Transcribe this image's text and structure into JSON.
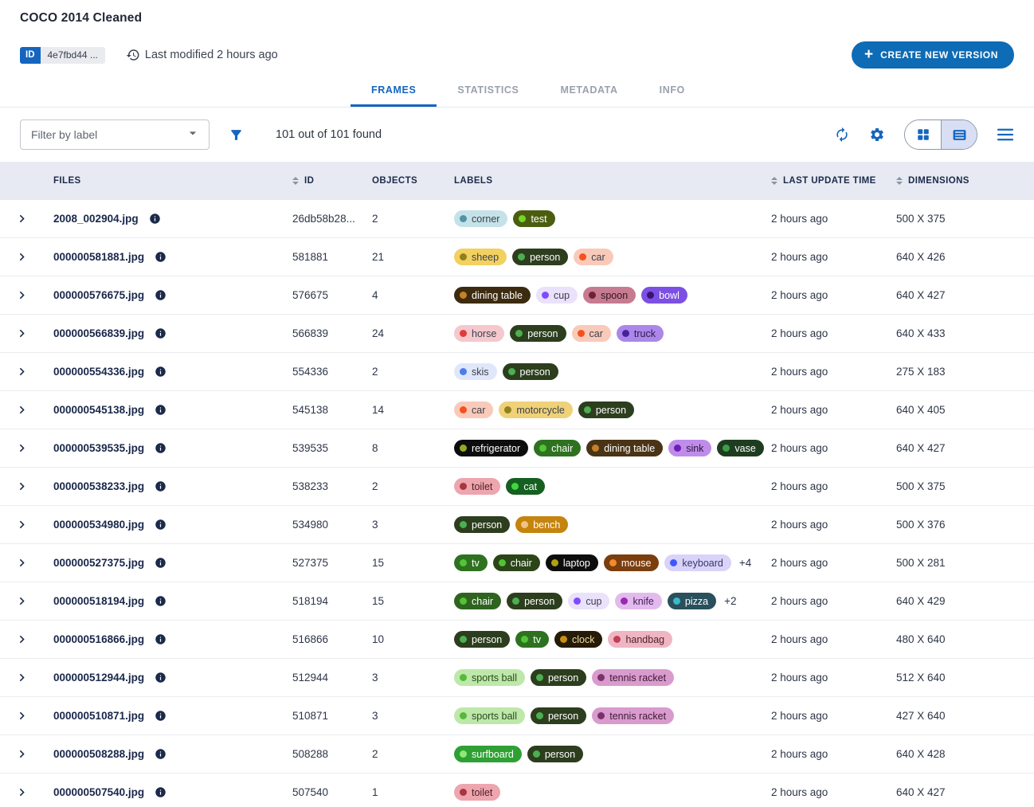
{
  "header": {
    "title": "COCO 2014 Cleaned",
    "id_badge": {
      "label": "ID",
      "value": "4e7fbd44 ..."
    },
    "last_modified": "Last modified 2 hours ago",
    "create_button": "CREATE NEW VERSION"
  },
  "tabs": [
    {
      "label": "FRAMES",
      "active": true
    },
    {
      "label": "STATISTICS",
      "active": false
    },
    {
      "label": "METADATA",
      "active": false
    },
    {
      "label": "INFO",
      "active": false
    }
  ],
  "toolbar": {
    "filter": {
      "placeholder": "Filter by label"
    },
    "results": "101 out of 101 found",
    "icons": [
      "filter-funnel",
      "refresh",
      "settings",
      "grid-view",
      "list-view",
      "menu"
    ],
    "view_toggle_selected": "list"
  },
  "colors": {
    "primary_blue": "#1565c0",
    "button_blue": "#0e6bb5",
    "header_row_bg": "#e7eaf3",
    "toggle_selected_bg": "#d8def3"
  },
  "table": {
    "columns": [
      {
        "key": "files",
        "label": "FILES",
        "sortable": false
      },
      {
        "key": "id",
        "label": "ID",
        "sortable": true
      },
      {
        "key": "objects",
        "label": "OBJECTS",
        "sortable": false
      },
      {
        "key": "labels",
        "label": "LABELS",
        "sortable": false
      },
      {
        "key": "time",
        "label": "LAST UPDATE TIME",
        "sortable": true
      },
      {
        "key": "dims",
        "label": "DIMENSIONS",
        "sortable": true
      }
    ],
    "rows": [
      {
        "file": "2008_002904.jpg",
        "id": "26db58b28...",
        "objects": "2",
        "labels": [
          {
            "t": "corner",
            "bg": "#c5e2e9",
            "dot": "#4f93a8",
            "fg": "#3a414e"
          },
          {
            "t": "test",
            "bg": "#4b5e10",
            "dot": "#73d824",
            "fg": "#ffffff"
          }
        ],
        "extra": "",
        "time": "2 hours ago",
        "dims": "500 X 375"
      },
      {
        "file": "000000581881.jpg",
        "id": "581881",
        "objects": "21",
        "labels": [
          {
            "t": "sheep",
            "bg": "#f2d160",
            "dot": "#92801e",
            "fg": "#3a414e"
          },
          {
            "t": "person",
            "bg": "#2c3e1d",
            "dot": "#4caf50",
            "fg": "#ffffff"
          },
          {
            "t": "car",
            "bg": "#f9cab9",
            "dot": "#f4511e",
            "fg": "#3a414e"
          }
        ],
        "extra": "",
        "time": "2 hours ago",
        "dims": "640 X 426"
      },
      {
        "file": "000000576675.jpg",
        "id": "576675",
        "objects": "4",
        "labels": [
          {
            "t": "dining table",
            "bg": "#3c2b10",
            "dot": "#c58125",
            "fg": "#ffffff"
          },
          {
            "t": "cup",
            "bg": "#eae2fb",
            "dot": "#7c4dff",
            "fg": "#3a414e"
          },
          {
            "t": "spoon",
            "bg": "#c77b90",
            "dot": "#6e2236",
            "fg": "#2e1822"
          },
          {
            "t": "bowl",
            "bg": "#7c50e2",
            "dot": "#381572",
            "fg": "#ffffff"
          }
        ],
        "extra": "",
        "time": "2 hours ago",
        "dims": "640 X 427"
      },
      {
        "file": "000000566839.jpg",
        "id": "566839",
        "objects": "24",
        "labels": [
          {
            "t": "horse",
            "bg": "#f5c8cd",
            "dot": "#e23b3b",
            "fg": "#3a414e"
          },
          {
            "t": "person",
            "bg": "#2c3e1d",
            "dot": "#4caf50",
            "fg": "#ffffff"
          },
          {
            "t": "car",
            "bg": "#f9cab9",
            "dot": "#f4511e",
            "fg": "#3a414e"
          },
          {
            "t": "truck",
            "bg": "#ab87e9",
            "dot": "#46219a",
            "fg": "#2c1a4e"
          }
        ],
        "extra": "",
        "time": "2 hours ago",
        "dims": "640 X 433"
      },
      {
        "file": "000000554336.jpg",
        "id": "554336",
        "objects": "2",
        "labels": [
          {
            "t": "skis",
            "bg": "#dfe7fa",
            "dot": "#4c7cf0",
            "fg": "#3a414e"
          },
          {
            "t": "person",
            "bg": "#2c3e1d",
            "dot": "#4caf50",
            "fg": "#ffffff"
          }
        ],
        "extra": "",
        "time": "2 hours ago",
        "dims": "275 X 183"
      },
      {
        "file": "000000545138.jpg",
        "id": "545138",
        "objects": "14",
        "labels": [
          {
            "t": "car",
            "bg": "#f9cab9",
            "dot": "#f4511e",
            "fg": "#3a414e"
          },
          {
            "t": "motorcycle",
            "bg": "#efd178",
            "dot": "#92801e",
            "fg": "#3a414e"
          },
          {
            "t": "person",
            "bg": "#2c3e1d",
            "dot": "#4caf50",
            "fg": "#ffffff"
          }
        ],
        "extra": "",
        "time": "2 hours ago",
        "dims": "640 X 405"
      },
      {
        "file": "000000539535.jpg",
        "id": "539535",
        "objects": "8",
        "labels": [
          {
            "t": "refrigerator",
            "bg": "#0d0d0d",
            "dot": "#8fae1f",
            "fg": "#ffffff"
          },
          {
            "t": "chair",
            "bg": "#2e7220",
            "dot": "#54c437",
            "fg": "#ffffff"
          },
          {
            "t": "dining table",
            "bg": "#4a3415",
            "dot": "#c58125",
            "fg": "#ffffff"
          },
          {
            "t": "sink",
            "bg": "#bf8de9",
            "dot": "#6a1fb8",
            "fg": "#2c1440"
          },
          {
            "t": "vase",
            "bg": "#1e3d20",
            "dot": "#3e9e48",
            "fg": "#ffffff"
          }
        ],
        "extra": "",
        "time": "2 hours ago",
        "dims": "640 X 427"
      },
      {
        "file": "000000538233.jpg",
        "id": "538233",
        "objects": "2",
        "labels": [
          {
            "t": "toilet",
            "bg": "#eda5ae",
            "dot": "#a8353f",
            "fg": "#4e1e24"
          },
          {
            "t": "cat",
            "bg": "#156020",
            "dot": "#3ed83e",
            "fg": "#ffffff"
          }
        ],
        "extra": "",
        "time": "2 hours ago",
        "dims": "500 X 375"
      },
      {
        "file": "000000534980.jpg",
        "id": "534980",
        "objects": "3",
        "labels": [
          {
            "t": "person",
            "bg": "#2c3e1d",
            "dot": "#4caf50",
            "fg": "#ffffff"
          },
          {
            "t": "bench",
            "bg": "#c5840e",
            "dot": "#f2c285",
            "fg": "#ffffff"
          }
        ],
        "extra": "",
        "time": "2 hours ago",
        "dims": "500 X 376"
      },
      {
        "file": "000000527375.jpg",
        "id": "527375",
        "objects": "15",
        "labels": [
          {
            "t": "tv",
            "bg": "#2e7220",
            "dot": "#54c437",
            "fg": "#ffffff"
          },
          {
            "t": "chair",
            "bg": "#2b4518",
            "dot": "#52c234",
            "fg": "#ffffff"
          },
          {
            "t": "laptop",
            "bg": "#0d0d0d",
            "dot": "#b0a014",
            "fg": "#ffffff"
          },
          {
            "t": "mouse",
            "bg": "#7b3e0f",
            "dot": "#f28a2a",
            "fg": "#ffffff"
          },
          {
            "t": "keyboard",
            "bg": "#d9d3f9",
            "dot": "#3d5afe",
            "fg": "#32396b"
          }
        ],
        "extra": "+4",
        "time": "2 hours ago",
        "dims": "500 X 281"
      },
      {
        "file": "000000518194.jpg",
        "id": "518194",
        "objects": "15",
        "labels": [
          {
            "t": "chair",
            "bg": "#2f6420",
            "dot": "#52c234",
            "fg": "#ffffff"
          },
          {
            "t": "person",
            "bg": "#2c3e1d",
            "dot": "#4caf50",
            "fg": "#ffffff"
          },
          {
            "t": "cup",
            "bg": "#eae2fb",
            "dot": "#7c4dff",
            "fg": "#3a414e"
          },
          {
            "t": "knife",
            "bg": "#e3baee",
            "dot": "#9c27b0",
            "fg": "#43205a"
          },
          {
            "t": "pizza",
            "bg": "#29505c",
            "dot": "#38bac8",
            "fg": "#ffffff"
          }
        ],
        "extra": "+2",
        "time": "2 hours ago",
        "dims": "640 X 429"
      },
      {
        "file": "000000516866.jpg",
        "id": "516866",
        "objects": "10",
        "labels": [
          {
            "t": "person",
            "bg": "#2c3e1d",
            "dot": "#4caf50",
            "fg": "#ffffff"
          },
          {
            "t": "tv",
            "bg": "#2e7220",
            "dot": "#54c437",
            "fg": "#ffffff"
          },
          {
            "t": "clock",
            "bg": "#251b06",
            "dot": "#c89010",
            "fg": "#ebdfac"
          },
          {
            "t": "handbag",
            "bg": "#f0b5c3",
            "dot": "#c04058",
            "fg": "#50222c"
          }
        ],
        "extra": "",
        "time": "2 hours ago",
        "dims": "480 X 640"
      },
      {
        "file": "000000512944.jpg",
        "id": "512944",
        "objects": "3",
        "labels": [
          {
            "t": "sports ball",
            "bg": "#bde8a9",
            "dot": "#56b93b",
            "fg": "#2c481f"
          },
          {
            "t": "person",
            "bg": "#2c3e1d",
            "dot": "#4caf50",
            "fg": "#ffffff"
          },
          {
            "t": "tennis racket",
            "bg": "#d99bce",
            "dot": "#7a3268",
            "fg": "#3e1a34"
          }
        ],
        "extra": "",
        "time": "2 hours ago",
        "dims": "512 X 640"
      },
      {
        "file": "000000510871.jpg",
        "id": "510871",
        "objects": "3",
        "labels": [
          {
            "t": "sports ball",
            "bg": "#bde8a9",
            "dot": "#56b93b",
            "fg": "#2c481f"
          },
          {
            "t": "person",
            "bg": "#2c3e1d",
            "dot": "#4caf50",
            "fg": "#ffffff"
          },
          {
            "t": "tennis racket",
            "bg": "#d99bce",
            "dot": "#7a3268",
            "fg": "#3e1a34"
          }
        ],
        "extra": "",
        "time": "2 hours ago",
        "dims": "427 X 640"
      },
      {
        "file": "000000508288.jpg",
        "id": "508288",
        "objects": "2",
        "labels": [
          {
            "t": "surfboard",
            "bg": "#2fa033",
            "dot": "#8ee878",
            "fg": "#ffffff"
          },
          {
            "t": "person",
            "bg": "#2c3e1d",
            "dot": "#4caf50",
            "fg": "#ffffff"
          }
        ],
        "extra": "",
        "time": "2 hours ago",
        "dims": "640 X 428"
      },
      {
        "file": "000000507540.jpg",
        "id": "507540",
        "objects": "1",
        "labels": [
          {
            "t": "toilet",
            "bg": "#eda5ae",
            "dot": "#a8353f",
            "fg": "#4e1e24"
          }
        ],
        "extra": "",
        "time": "2 hours ago",
        "dims": "640 X 427"
      }
    ]
  }
}
